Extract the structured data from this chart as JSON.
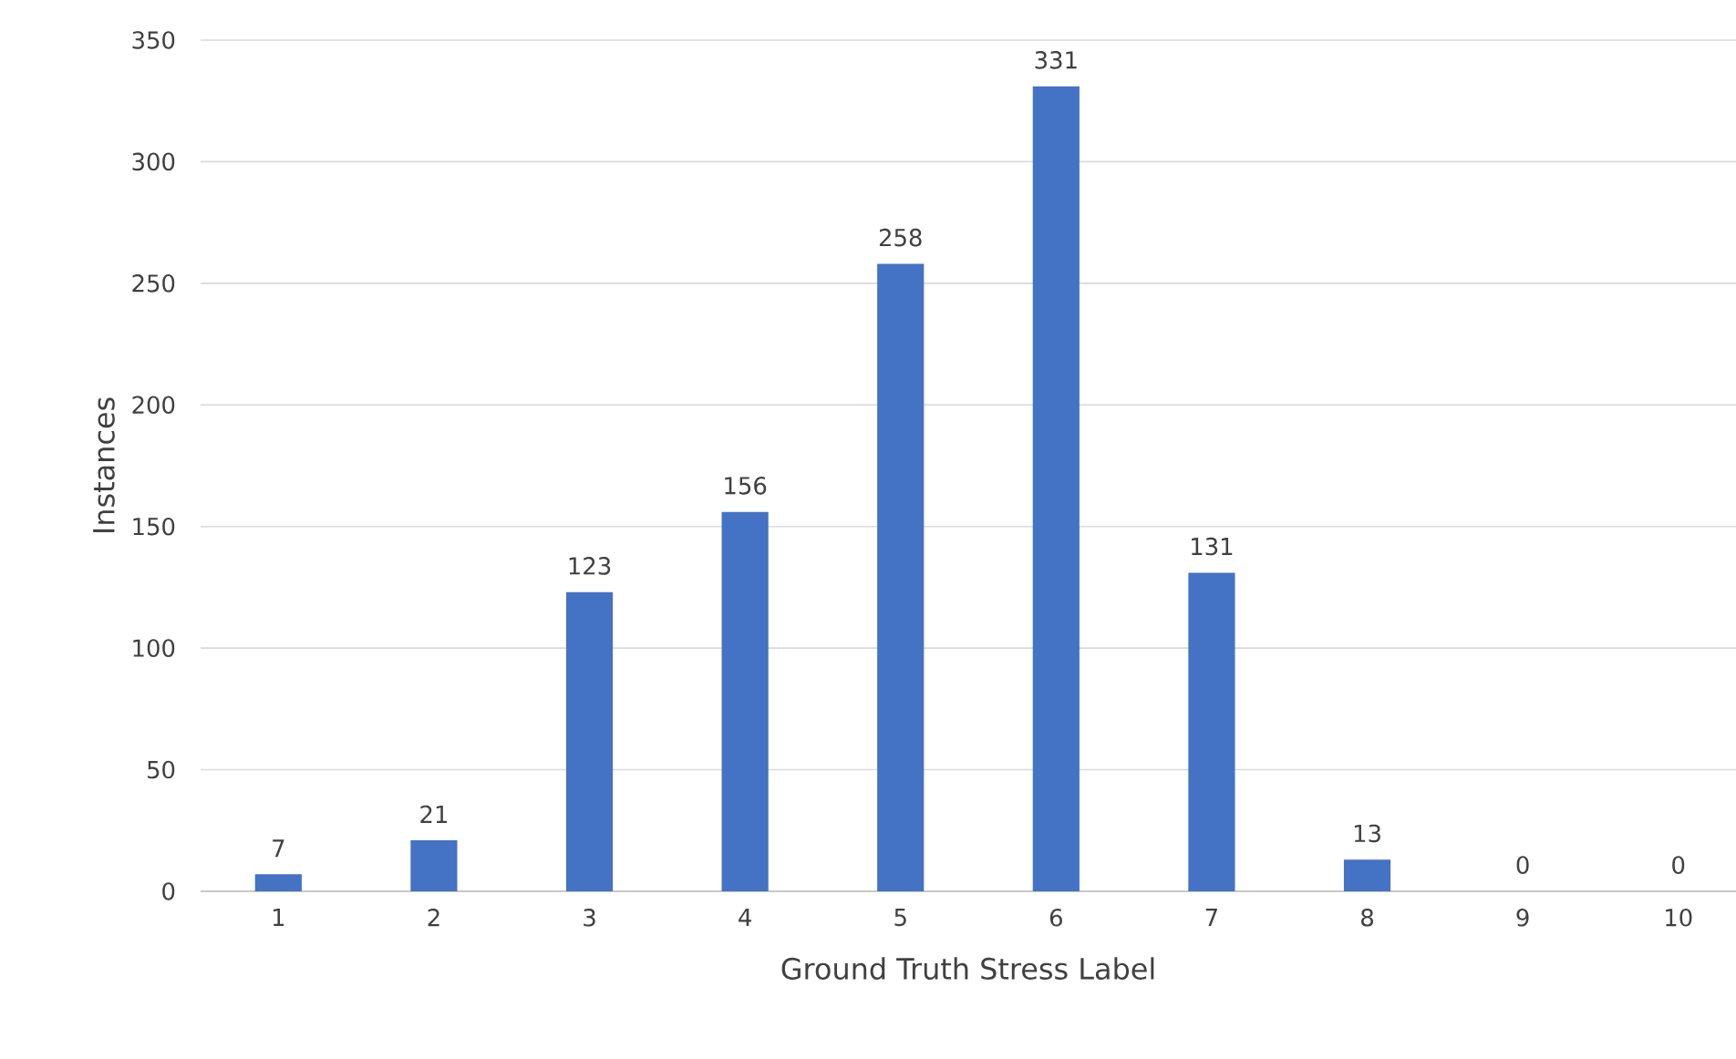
{
  "chart_data": {
    "type": "bar",
    "xlabel": "Ground Truth Stress Label",
    "ylabel": "Instances",
    "categories": [
      "1",
      "2",
      "3",
      "4",
      "5",
      "6",
      "7",
      "8",
      "9",
      "10"
    ],
    "values": [
      7,
      21,
      123,
      156,
      258,
      331,
      131,
      13,
      0,
      0
    ],
    "color": "#4472c4",
    "ylim": [
      0,
      350
    ],
    "yticks": [
      0,
      50,
      100,
      150,
      200,
      250,
      300,
      350
    ],
    "grid": "y",
    "data_labels": true
  }
}
